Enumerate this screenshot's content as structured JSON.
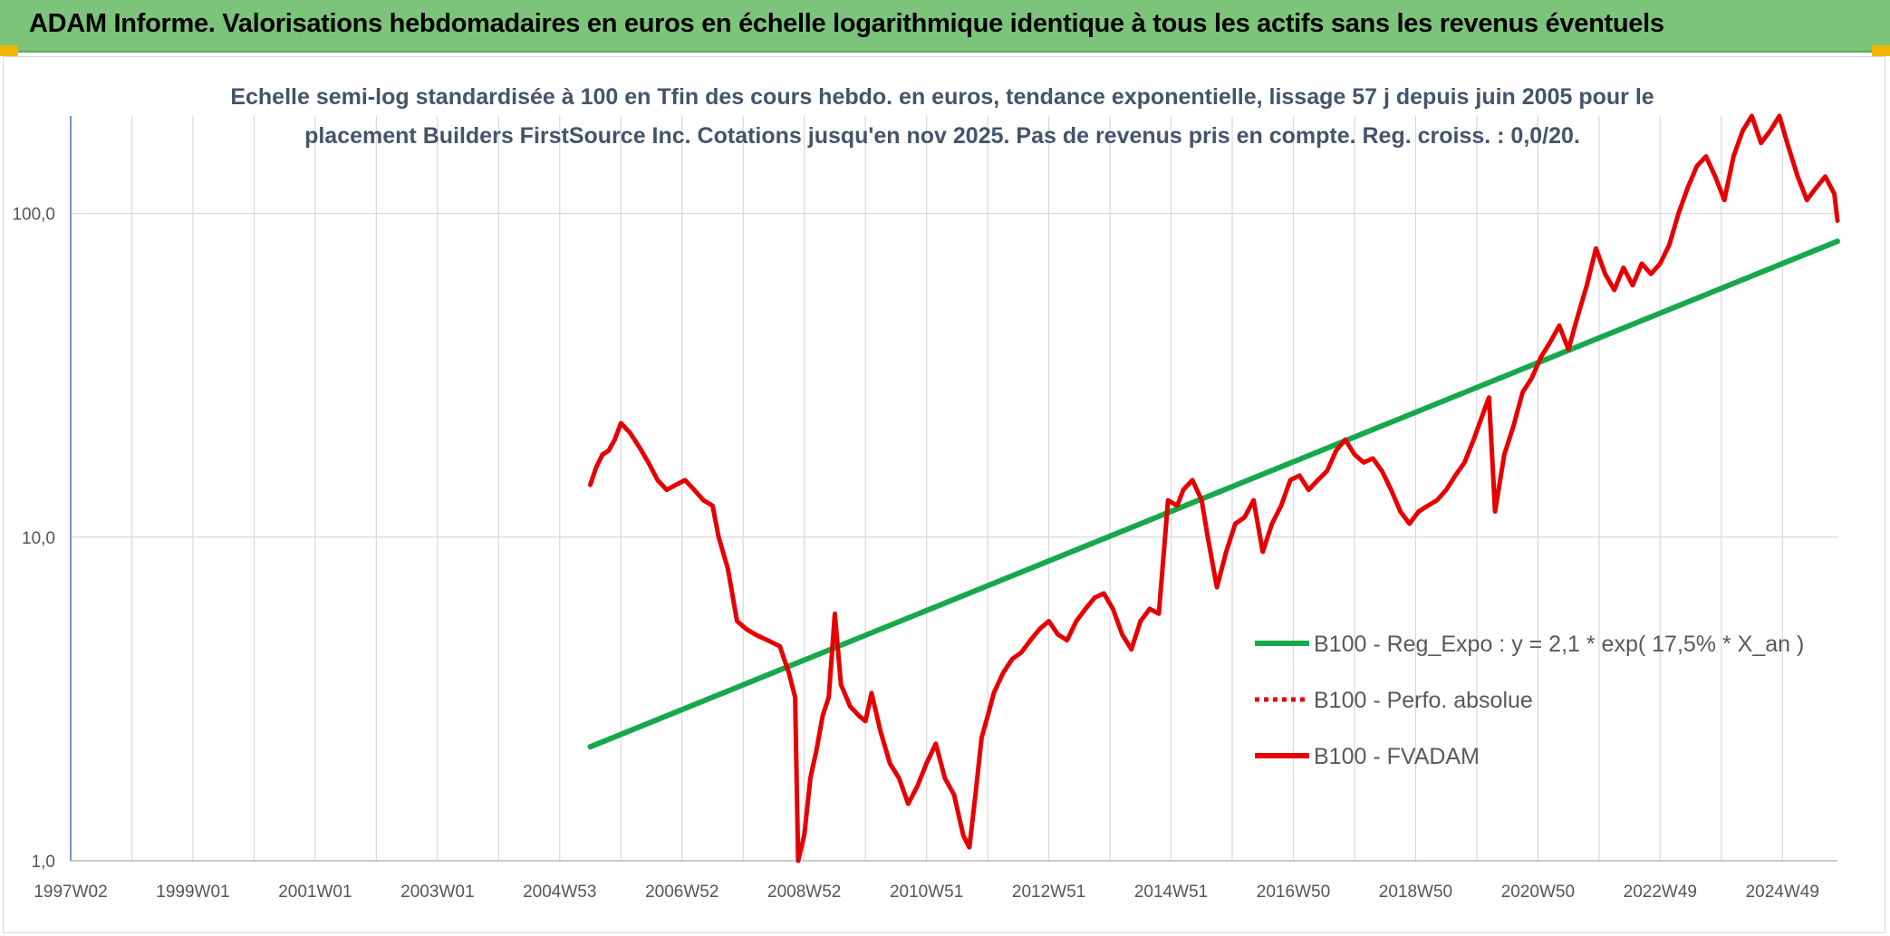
{
  "banner": {
    "title": "ADAM Informe. Valorisations hebdomadaires en euros en échelle logarithmique identique à tous les actifs sans les revenus éventuels"
  },
  "colors": {
    "banner_bg": "#7dc47b",
    "regression": "#18a84c",
    "price": "#e60000",
    "grid": "#d9d9d9",
    "subtitle": "#44546a"
  },
  "chart_data": {
    "type": "line",
    "title": "",
    "subtitle_lines": [
      "Echelle semi-log standardisée à 100 en Tfin des cours hebdo. en euros, tendance exponentielle, lissage 57 j depuis juin 2005 pour le",
      "placement Builders FirstSource Inc. Cotations jusqu'en nov 2025. Pas de revenus pris en compte. Reg. croiss. : 0,0/20."
    ],
    "xlabel": "",
    "ylabel": "",
    "y_scale": "log",
    "ylim": [
      1,
      200
    ],
    "xlim": [
      1997.0,
      2025.9
    ],
    "x_tick_labels": [
      "1997W02",
      "1999W01",
      "2001W01",
      "2003W01",
      "2004W53",
      "2006W52",
      "2008W52",
      "2010W51",
      "2012W51",
      "2014W51",
      "2016W50",
      "2018W50",
      "2020W50",
      "2022W49",
      "2024W49"
    ],
    "x_tick_positions": [
      1997.0,
      1999.0,
      2001.0,
      2003.0,
      2005.0,
      2007.0,
      2009.0,
      2011.0,
      2013.0,
      2015.0,
      2017.0,
      2019.0,
      2021.0,
      2023.0,
      2025.0
    ],
    "y_tick_labels": [
      "1,0",
      "10,0",
      "100,0"
    ],
    "y_tick_values": [
      1,
      10,
      100
    ],
    "grid": true,
    "legend_position": "right",
    "legend": [
      {
        "label": "B100 - Reg_Expo : y = 2,1 * exp( 17,5% *  X_an )",
        "style": "solid-green"
      },
      {
        "label": "B100 - Perfo. absolue",
        "style": "dotted-red"
      },
      {
        "label": "B100 - FVADAM",
        "style": "solid-red"
      }
    ],
    "series": [
      {
        "name": "B100 - Reg_Expo : y = 2,1 * exp( 17,5% *  X_an )",
        "x": [
          2005.5,
          2025.9
        ],
        "y": [
          2.25,
          82.0
        ]
      },
      {
        "name": "B100 - FVADAM",
        "x": [
          2005.5,
          2005.6,
          2005.7,
          2005.8,
          2005.9,
          2006.0,
          2006.15,
          2006.3,
          2006.45,
          2006.6,
          2006.75,
          2006.9,
          2007.05,
          2007.2,
          2007.35,
          2007.5,
          2007.6,
          2007.75,
          2007.9,
          2008.05,
          2008.2,
          2008.4,
          2008.6,
          2008.75,
          2008.85,
          2008.9,
          2009.0,
          2009.1,
          2009.2,
          2009.3,
          2009.4,
          2009.5,
          2009.6,
          2009.75,
          2009.9,
          2010.0,
          2010.1,
          2010.25,
          2010.4,
          2010.55,
          2010.7,
          2010.85,
          2011.0,
          2011.15,
          2011.3,
          2011.45,
          2011.6,
          2011.7,
          2011.8,
          2011.9,
          2012.0,
          2012.1,
          2012.25,
          2012.4,
          2012.55,
          2012.7,
          2012.85,
          2013.0,
          2013.15,
          2013.3,
          2013.45,
          2013.6,
          2013.75,
          2013.9,
          2014.05,
          2014.2,
          2014.35,
          2014.5,
          2014.65,
          2014.8,
          2014.95,
          2015.1,
          2015.2,
          2015.35,
          2015.5,
          2015.6,
          2015.75,
          2015.9,
          2016.05,
          2016.2,
          2016.35,
          2016.5,
          2016.65,
          2016.8,
          2016.95,
          2017.1,
          2017.25,
          2017.4,
          2017.55,
          2017.7,
          2017.85,
          2018.0,
          2018.15,
          2018.3,
          2018.45,
          2018.6,
          2018.75,
          2018.9,
          2019.05,
          2019.2,
          2019.35,
          2019.5,
          2019.65,
          2019.8,
          2019.95,
          2020.1,
          2020.2,
          2020.3,
          2020.45,
          2020.6,
          2020.75,
          2020.9,
          2021.05,
          2021.2,
          2021.35,
          2021.5,
          2021.65,
          2021.8,
          2021.95,
          2022.1,
          2022.25,
          2022.4,
          2022.55,
          2022.7,
          2022.85,
          2023.0,
          2023.15,
          2023.3,
          2023.45,
          2023.6,
          2023.75,
          2023.9,
          2024.05,
          2024.2,
          2024.35,
          2024.5,
          2024.65,
          2024.8,
          2024.95,
          2025.1,
          2025.25,
          2025.4,
          2025.55,
          2025.7,
          2025.85,
          2025.9
        ],
        "y": [
          14.5,
          16.5,
          18.0,
          18.5,
          20.0,
          22.5,
          21.0,
          19.0,
          17.0,
          15.0,
          14.0,
          14.5,
          15.0,
          14.0,
          13.0,
          12.5,
          10.0,
          8.0,
          5.5,
          5.2,
          5.0,
          4.8,
          4.6,
          3.8,
          3.2,
          1.0,
          1.2,
          1.8,
          2.2,
          2.8,
          3.2,
          5.8,
          3.5,
          3.0,
          2.8,
          2.7,
          3.3,
          2.5,
          2.0,
          1.8,
          1.5,
          1.7,
          2.0,
          2.3,
          1.8,
          1.6,
          1.2,
          1.1,
          1.6,
          2.4,
          2.8,
          3.3,
          3.8,
          4.2,
          4.4,
          4.8,
          5.2,
          5.5,
          5.0,
          4.8,
          5.5,
          6.0,
          6.5,
          6.7,
          6.0,
          5.0,
          4.5,
          5.5,
          6.0,
          5.8,
          13.0,
          12.5,
          14.0,
          15.0,
          13.0,
          10.0,
          7.0,
          9.0,
          11.0,
          11.5,
          13.0,
          9.0,
          11.0,
          12.5,
          15.0,
          15.5,
          14.0,
          15.0,
          16.0,
          18.5,
          20.0,
          18.0,
          17.0,
          17.5,
          16.0,
          14.0,
          12.0,
          11.0,
          12.0,
          12.5,
          13.0,
          14.0,
          15.5,
          17.0,
          20.0,
          24.0,
          27.0,
          12.0,
          18.0,
          22.0,
          28.0,
          31.0,
          36.0,
          40.0,
          45.0,
          38.0,
          48.0,
          60.0,
          78.0,
          65.0,
          58.0,
          68.0,
          60.0,
          70.0,
          65.0,
          70.0,
          80.0,
          100.0,
          120.0,
          140.0,
          150.0,
          130.0,
          110.0,
          150.0,
          180.0,
          200.0,
          165.0,
          180.0,
          200.0,
          160.0,
          130.0,
          110.0,
          120.0,
          130.0,
          115.0,
          95.0
        ]
      }
    ]
  }
}
